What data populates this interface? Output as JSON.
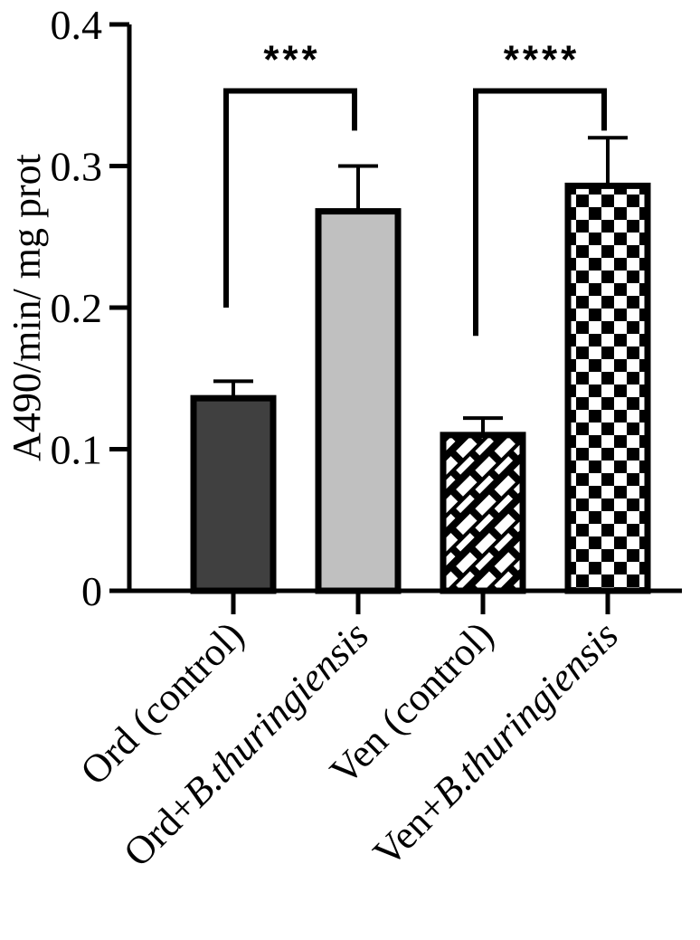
{
  "chart_data": {
    "type": "bar",
    "title": "",
    "xlabel": "",
    "ylabel": "A490/min/ mg prot",
    "ylim": [
      0,
      0.4
    ],
    "yticks": [
      0,
      0.1,
      0.2,
      0.3,
      0.4
    ],
    "ytick_labels": [
      "0",
      "0.1",
      "0.2",
      "0.3",
      "0.4"
    ],
    "grid": false,
    "categories": [
      {
        "label_parts": [
          "Ord (control)"
        ],
        "italic_from": -1
      },
      {
        "label_parts": [
          "Ord+",
          "B.thuringiensis"
        ],
        "italic_from": 1
      },
      {
        "label_parts": [
          "Ven (control)"
        ],
        "italic_from": -1
      },
      {
        "label_parts": [
          "Ven+",
          "B.thuringiensis"
        ],
        "italic_from": 1
      }
    ],
    "values": [
      0.136,
      0.268,
      0.11,
      0.286
    ],
    "errors": [
      0.012,
      0.032,
      0.012,
      0.034
    ],
    "fills": [
      {
        "pattern": "solid",
        "color": "#404040"
      },
      {
        "pattern": "solid",
        "color": "#c0c0c0"
      },
      {
        "pattern": "brick",
        "color": "#000000"
      },
      {
        "pattern": "checker",
        "color": "#000000"
      }
    ],
    "significance": [
      {
        "from": 0,
        "to": 1,
        "label": "***",
        "left_y": 0.2,
        "right_y": 0.325,
        "top_y": 0.353
      },
      {
        "from": 2,
        "to": 3,
        "label": "****",
        "left_y": 0.18,
        "right_y": 0.325,
        "top_y": 0.353
      }
    ]
  }
}
